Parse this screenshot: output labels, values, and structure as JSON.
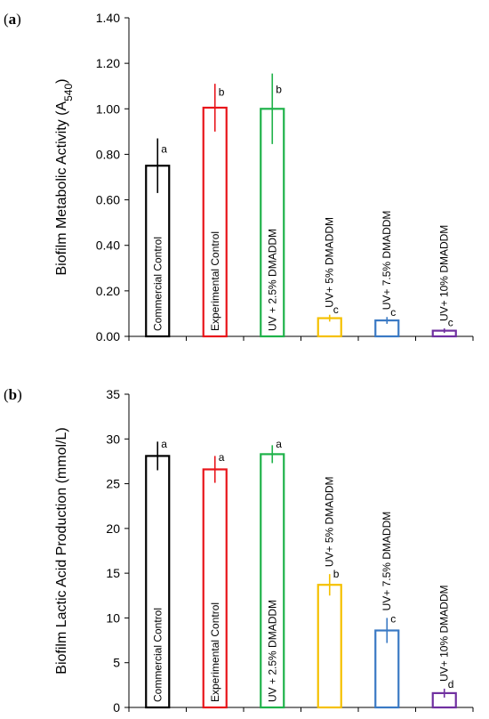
{
  "chart_data": [
    {
      "type": "bar",
      "panel_label_prefix": "(",
      "panel_letter": "a",
      "panel_label_suffix": ")",
      "ylabel_main": "Biofilm Metabolic Activity (A",
      "ylabel_sub": "540",
      "ylabel_end": ")",
      "ylim": [
        0,
        1.4
      ],
      "yticks": [
        "0.00",
        "0.20",
        "0.40",
        "0.60",
        "0.80",
        "1.00",
        "1.20",
        "1.40"
      ],
      "ytick_values": [
        0,
        0.2,
        0.4,
        0.6,
        0.8,
        1.0,
        1.2,
        1.4
      ],
      "categories": [
        "Commercial Control",
        "Experimental Control",
        "UV + 2.5% DMADDM",
        "UV+ 5% DMADDM",
        "UV+ 7.5% DMADDM",
        "UV+ 10% DMADDM"
      ],
      "values": [
        0.75,
        1.005,
        1.0,
        0.08,
        0.07,
        0.025
      ],
      "errors": [
        0.12,
        0.105,
        0.155,
        0.015,
        0.015,
        0.01
      ],
      "significance": [
        "a",
        "b",
        "b",
        "c",
        "c",
        "c"
      ],
      "colors": [
        "#000000",
        "#e8151b",
        "#1fb24a",
        "#f5c000",
        "#3a79c4",
        "#7030a0"
      ],
      "grid": false
    },
    {
      "type": "bar",
      "panel_label_prefix": "(",
      "panel_letter": "b",
      "panel_label_suffix": ")",
      "ylabel_main": "Biofilm Lactic Acid Production (mmol/L)",
      "ylabel_sub": "",
      "ylabel_end": "",
      "ylim": [
        0,
        35
      ],
      "yticks": [
        "0",
        "5",
        "10",
        "15",
        "20",
        "25",
        "30",
        "35"
      ],
      "ytick_values": [
        0,
        5,
        10,
        15,
        20,
        25,
        30,
        35
      ],
      "categories": [
        "Commercial Control",
        "Experimental Control",
        "UV + 2.5% DMADDM",
        "UV+ 5% DMADDM",
        "UV+ 7.5% DMADDM",
        "UV+ 10% DMADDM"
      ],
      "values": [
        28.1,
        26.6,
        28.3,
        13.7,
        8.6,
        1.6
      ],
      "errors": [
        1.6,
        1.5,
        1.0,
        1.2,
        1.4,
        0.5
      ],
      "significance": [
        "a",
        "a",
        "a",
        "b",
        "c",
        "d"
      ],
      "colors": [
        "#000000",
        "#e8151b",
        "#1fb24a",
        "#f5c000",
        "#3a79c4",
        "#7030a0"
      ],
      "grid": false
    }
  ]
}
